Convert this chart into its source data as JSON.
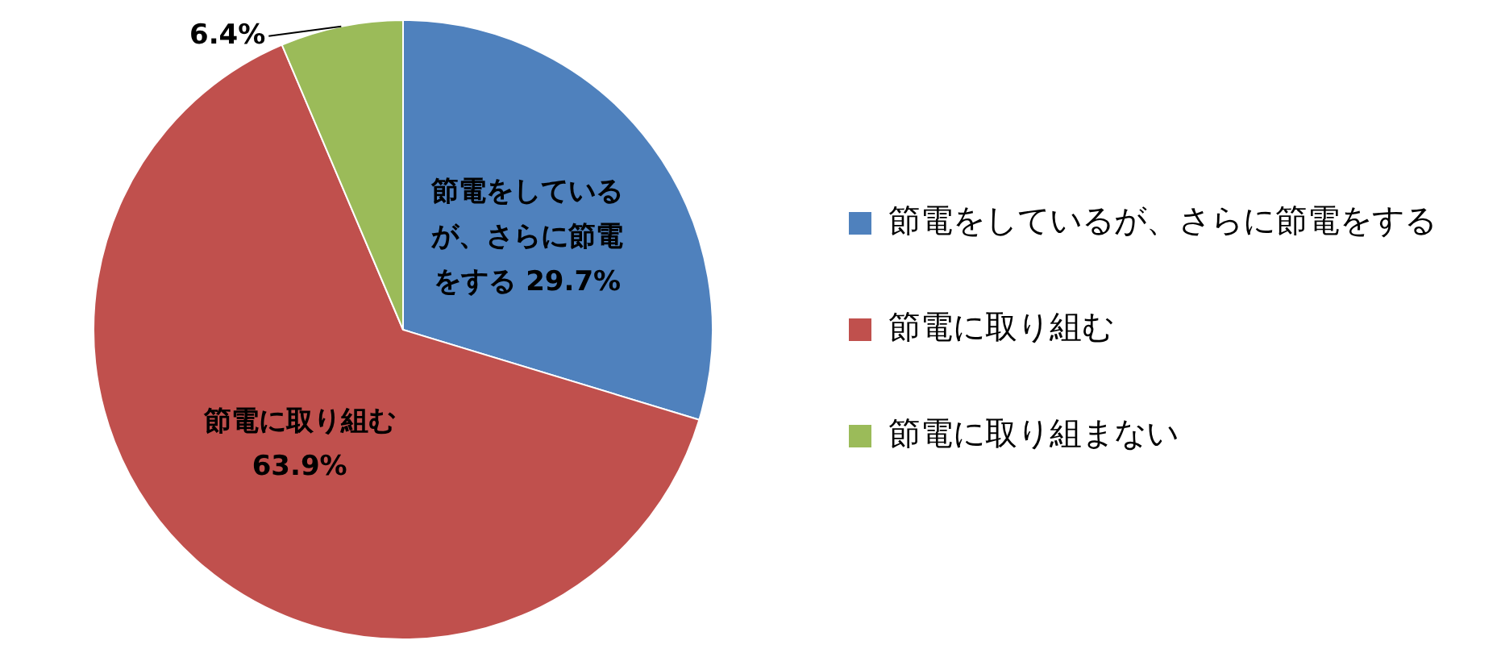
{
  "chart_data": {
    "type": "pie",
    "categories": [
      "節電をしているが、さらに節電をする",
      "節電に取り組む",
      "節電に取り組まない"
    ],
    "values": [
      29.7,
      63.9,
      6.4
    ],
    "colors": [
      "#4f81bd",
      "#c0504d",
      "#9bbb59"
    ],
    "value_labels": [
      "節電をしているが、さらに節電をする 29.7%",
      "節電に取り組む 63.9%",
      "6.4%"
    ],
    "legend": "right"
  }
}
